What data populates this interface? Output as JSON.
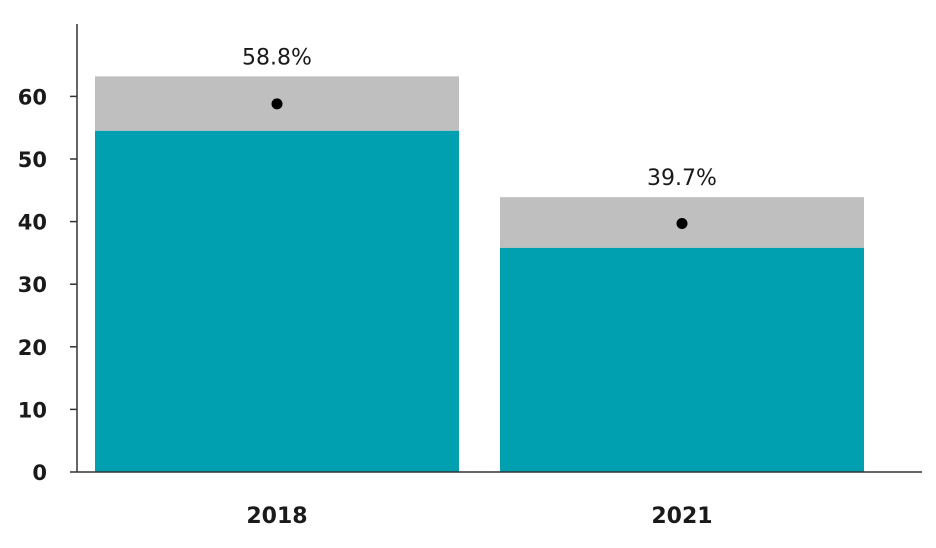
{
  "chart_data": {
    "type": "bar",
    "categories": [
      "2018",
      "2021"
    ],
    "series": [
      {
        "values": [
          54.5,
          35.8
        ]
      },
      {
        "values": [
          63.2,
          43.9
        ]
      },
      {
        "values": [
          58.8,
          39.7
        ]
      }
    ],
    "data_labels": [
      "58.8%",
      "39.7%"
    ],
    "y_ticks": [
      "0",
      "10",
      "20",
      "30",
      "40",
      "50",
      "60"
    ],
    "ylim": [
      0,
      70
    ],
    "grid": false,
    "colors": {
      "bar": "#00a0b0",
      "range": "#bfbfbf",
      "point": "#000000",
      "axis": "#333333"
    }
  }
}
